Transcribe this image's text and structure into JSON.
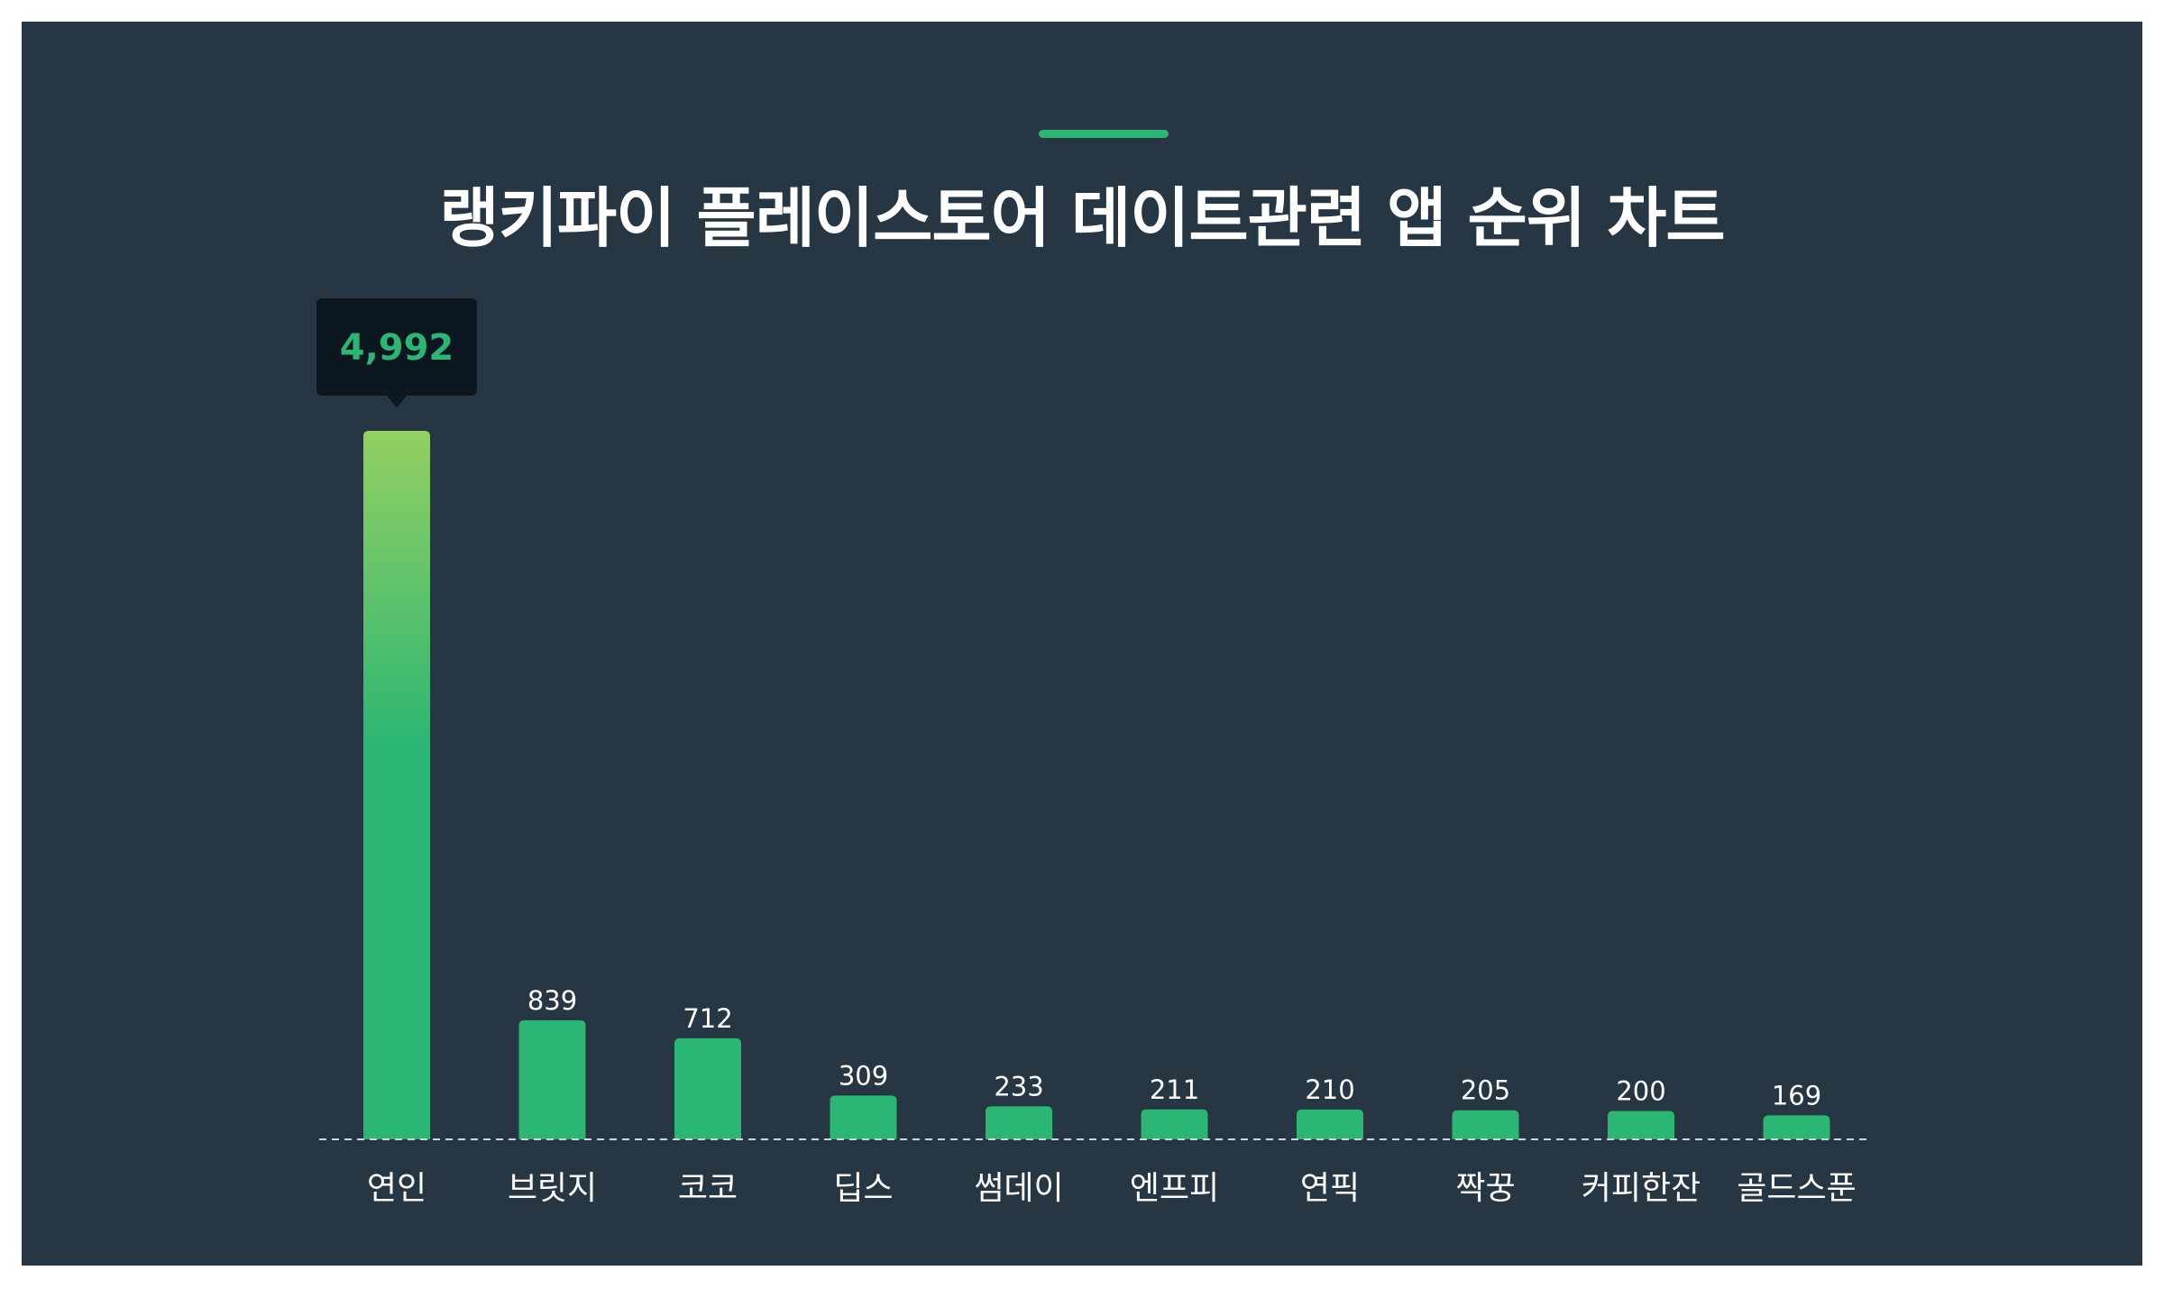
{
  "chart_data": {
    "type": "bar",
    "title": "랭키파이 플레이스토어 데이트관련 앱 순위 차트",
    "categories": [
      "연인",
      "브릿지",
      "코코",
      "딥스",
      "썸데이",
      "엔프피",
      "연픽",
      "짝꿍",
      "커피한잔",
      "골드스푼"
    ],
    "values": [
      4992,
      839,
      712,
      309,
      233,
      211,
      210,
      205,
      200,
      169
    ],
    "value_labels": [
      "4,992",
      "839",
      "712",
      "309",
      "233",
      "211",
      "210",
      "205",
      "200",
      "169"
    ],
    "highlight_index": 0,
    "xlabel": "",
    "ylabel": "",
    "ylim": [
      0,
      4992
    ],
    "grid": false,
    "legend": "none",
    "colors": {
      "background": "#263642",
      "bar": "#2bb673",
      "bar_highlight_top": "#93d062",
      "accent": "#2bb673",
      "tooltip_bg": "#0d1720",
      "text": "#ffffff",
      "baseline": "#cfd6dc"
    }
  }
}
